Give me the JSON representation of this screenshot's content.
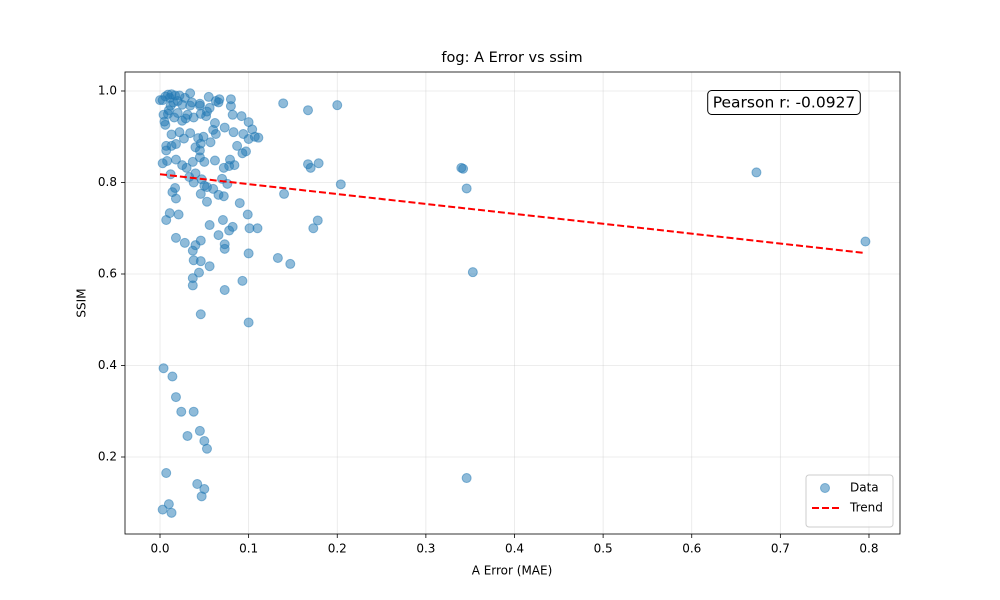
{
  "chart_data": {
    "type": "scatter",
    "title": "fog: A Error vs ssim",
    "xlabel": "A Error (MAE)",
    "ylabel": "SSIM",
    "annotation": "Pearson r: -0.0927",
    "xlim": [
      -0.0395,
      0.835
    ],
    "ylim": [
      0.0317,
      1.0415
    ],
    "xticks": [
      {
        "value": 0,
        "label": "0.0"
      },
      0.1,
      0.2,
      0.3,
      0.4,
      0.5,
      0.6,
      0.7,
      0.8
    ],
    "yticks": [
      0.2,
      0.4,
      0.6,
      0.8,
      {
        "value": 1,
        "label": "1.0"
      }
    ],
    "grid": true,
    "legend": "lower right",
    "series": [
      {
        "name": "Data",
        "color": "#1f77b4",
        "x": [
          0.139,
          0.167,
          0.2,
          0.167,
          0.17,
          0.179,
          0.204,
          0.14,
          0.173,
          0.178,
          0.133,
          0.147,
          0.34,
          0.342,
          0.346,
          0.353,
          0.346,
          0.673,
          0.796,
          0.004,
          0.014,
          0.018,
          0.024,
          0.038,
          0.031,
          0.045,
          0.05,
          0.053,
          0.007,
          0.003,
          0.01,
          0.013,
          0.042,
          0.05,
          0.047,
          0.046,
          0.1,
          0.073,
          0.093,
          0.037,
          0.037,
          0.044,
          0.056,
          0.046,
          0.038,
          0.037,
          0.04,
          0.046,
          0.028,
          0.018,
          0.073,
          0.073,
          0.1,
          0.066,
          0.078,
          0.082,
          0.101,
          0.11,
          0.099,
          0.071,
          0.056,
          0.007,
          0.011,
          0.021,
          0.09,
          0.053,
          0.018,
          0.014,
          0.017,
          0.072,
          0.046,
          0.06,
          0.066,
          0.038,
          0.05,
          0.053,
          0.076,
          0.07,
          0.047,
          0.033,
          0.04,
          0.012,
          0.078,
          0.084,
          0.072,
          0.062,
          0.079,
          0.093,
          0.097,
          0.05,
          0.045,
          0.018,
          0.008,
          0.003,
          0.025,
          0.03,
          0.037,
          0.045,
          0.007,
          0.007,
          0.013,
          0.018,
          0.04,
          0.046,
          0.057,
          0.087,
          0.1,
          0.107,
          0.111,
          0.094,
          0.083,
          0.063,
          0.06,
          0.049,
          0.043,
          0.034,
          0.022,
          0.013,
          0.027,
          0.073,
          0.1,
          0.104,
          0.092,
          0.082,
          0.062,
          0.052,
          0.038,
          0.029,
          0.025,
          0.016,
          0.005,
          0.006,
          0.004,
          0.009,
          0.02,
          0.031,
          0.045,
          0.056,
          0.066,
          0.08,
          0.08,
          0.067,
          0.063,
          0.055,
          0.045,
          0.036,
          0.034,
          0.028,
          0.022,
          0.02,
          0.017,
          0.013,
          0.011,
          0.009,
          0.006,
          0.003,
          0.0,
          0.015,
          0.025,
          0.012,
          0.01,
          0.053,
          0.046,
          0.034
        ],
        "values": [
          0.973,
          0.958,
          0.969,
          0.84,
          0.832,
          0.842,
          0.796,
          0.775,
          0.7,
          0.717,
          0.635,
          0.622,
          0.832,
          0.83,
          0.787,
          0.604,
          0.154,
          0.822,
          0.671,
          0.394,
          0.376,
          0.331,
          0.299,
          0.299,
          0.246,
          0.257,
          0.235,
          0.218,
          0.165,
          0.085,
          0.097,
          0.078,
          0.141,
          0.13,
          0.114,
          0.512,
          0.494,
          0.565,
          0.585,
          0.575,
          0.591,
          0.603,
          0.617,
          0.628,
          0.63,
          0.651,
          0.663,
          0.673,
          0.668,
          0.679,
          0.665,
          0.655,
          0.645,
          0.685,
          0.695,
          0.703,
          0.7,
          0.7,
          0.73,
          0.718,
          0.707,
          0.718,
          0.733,
          0.73,
          0.755,
          0.758,
          0.765,
          0.779,
          0.788,
          0.77,
          0.775,
          0.786,
          0.773,
          0.8,
          0.793,
          0.79,
          0.797,
          0.808,
          0.807,
          0.812,
          0.82,
          0.818,
          0.836,
          0.838,
          0.832,
          0.848,
          0.85,
          0.864,
          0.868,
          0.845,
          0.855,
          0.85,
          0.847,
          0.842,
          0.838,
          0.832,
          0.845,
          0.87,
          0.87,
          0.88,
          0.88,
          0.884,
          0.877,
          0.885,
          0.888,
          0.88,
          0.895,
          0.9,
          0.898,
          0.906,
          0.91,
          0.906,
          0.915,
          0.9,
          0.897,
          0.908,
          0.91,
          0.905,
          0.896,
          0.92,
          0.932,
          0.916,
          0.945,
          0.948,
          0.93,
          0.945,
          0.942,
          0.94,
          0.935,
          0.942,
          0.933,
          0.926,
          0.948,
          0.95,
          0.952,
          0.948,
          0.968,
          0.963,
          0.975,
          0.967,
          0.982,
          0.982,
          0.978,
          0.987,
          0.972,
          0.975,
          0.995,
          0.985,
          0.99,
          0.978,
          0.99,
          0.993,
          0.985,
          0.992,
          0.988,
          0.98,
          0.98,
          0.975,
          0.97,
          0.968,
          0.958,
          0.955,
          0.95,
          0.968
        ]
      },
      {
        "name": "Trend",
        "type": "line",
        "color": "#ff0000",
        "x": [
          0,
          0.795
        ],
        "values": [
          0.818,
          0.646
        ]
      }
    ]
  }
}
